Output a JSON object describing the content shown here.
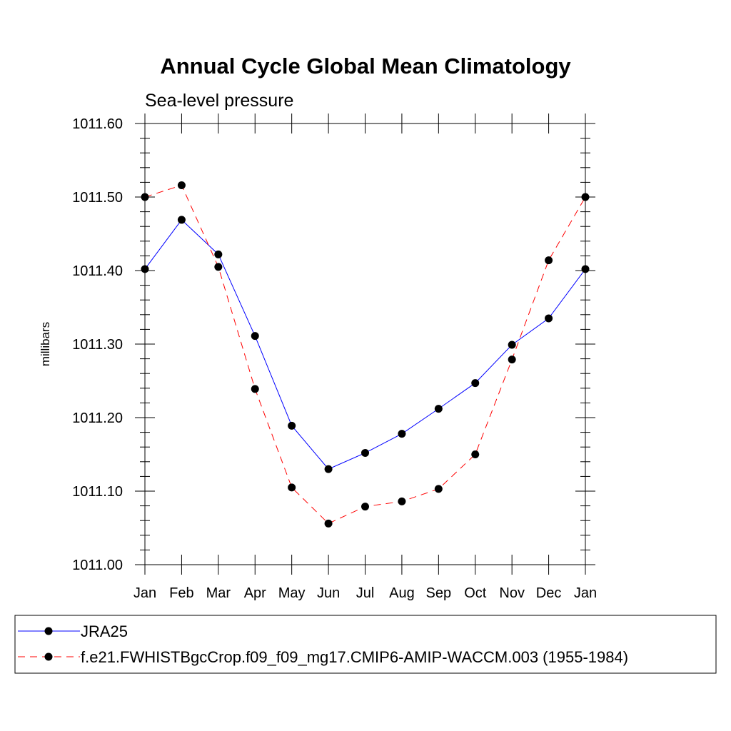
{
  "chart_data": {
    "type": "line",
    "title": "Annual Cycle Global Mean Climatology",
    "subtitle": "Sea-level pressure",
    "ylabel": "millibars",
    "xlabel": "",
    "categories": [
      "Jan",
      "Feb",
      "Mar",
      "Apr",
      "May",
      "Jun",
      "Jul",
      "Aug",
      "Sep",
      "Oct",
      "Nov",
      "Dec",
      "Jan"
    ],
    "ylim": [
      1011.0,
      1011.6
    ],
    "y_ticks": [
      "1011.00",
      "1011.10",
      "1011.20",
      "1011.30",
      "1011.40",
      "1011.50",
      "1011.60"
    ],
    "grid": false,
    "legend_position": "bottom",
    "series": [
      {
        "name": "JRA25",
        "color": "#0000ff",
        "line_style": "solid",
        "marker": "filled-circle",
        "values": [
          1011.402,
          1011.469,
          1011.422,
          1011.311,
          1011.189,
          1011.13,
          1011.152,
          1011.178,
          1011.212,
          1011.247,
          1011.299,
          1011.335,
          1011.402
        ]
      },
      {
        "name": "f.e21.FWHISTBgcCrop.f09_f09_mg17.CMIP6-AMIP-WACCM.003 (1955-1984)",
        "color": "#ff0000",
        "line_style": "dashed",
        "marker": "filled-circle",
        "values": [
          1011.5,
          1011.516,
          1011.405,
          1011.239,
          1011.105,
          1011.056,
          1011.079,
          1011.086,
          1011.103,
          1011.15,
          1011.279,
          1011.414,
          1011.5
        ]
      }
    ]
  }
}
